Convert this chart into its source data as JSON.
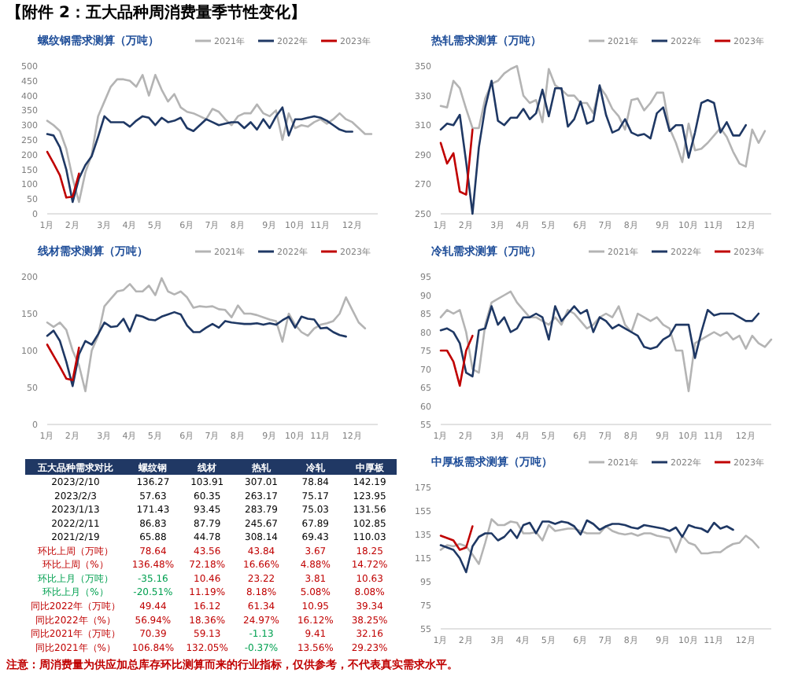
{
  "chart_data": [
    {
      "type": "line",
      "title": "【附件 2：五大品种周消费量季节性变化】",
      "subtitle": "螺纹钢需求测算（万吨）",
      "legend": "top right",
      "ylim": [
        0,
        500
      ],
      "yticks": [
        0,
        50,
        100,
        150,
        200,
        250,
        300,
        350,
        400,
        450,
        500
      ],
      "categories": [
        "1月",
        null,
        null,
        null,
        "2月",
        null,
        null,
        null,
        null,
        "3月",
        null,
        null,
        null,
        "4月",
        null,
        null,
        null,
        "5月",
        null,
        null,
        null,
        null,
        "6月",
        null,
        null,
        null,
        "7月",
        null,
        null,
        null,
        "8月",
        null,
        null,
        null,
        null,
        "9月",
        null,
        null,
        null,
        "10月",
        null,
        null,
        null,
        "11月",
        null,
        null,
        null,
        null,
        "12月",
        null,
        null,
        null,
        null
      ],
      "series": [
        {
          "name": "2021年",
          "color": "#b4b4b4",
          "values": [
            315,
            300,
            280,
            220,
            120,
            40,
            140,
            200,
            330,
            380,
            430,
            455,
            455,
            450,
            430,
            470,
            400,
            470,
            420,
            380,
            405,
            360,
            345,
            340,
            330,
            320,
            355,
            345,
            320,
            300,
            330,
            340,
            340,
            370,
            340,
            330,
            350,
            250,
            340,
            290,
            300,
            295,
            310,
            320,
            305,
            320,
            340,
            320,
            310,
            290,
            270,
            270,
            null
          ]
        },
        {
          "name": "2022年",
          "color": "#1f3864",
          "values": [
            270,
            265,
            225,
            150,
            40,
            120,
            165,
            195,
            260,
            330,
            310,
            310,
            310,
            295,
            315,
            330,
            325,
            300,
            325,
            310,
            315,
            325,
            290,
            280,
            300,
            320,
            310,
            300,
            305,
            310,
            310,
            290,
            310,
            285,
            320,
            290,
            330,
            360,
            265,
            320,
            320,
            325,
            330,
            325,
            315,
            300,
            285,
            278,
            278,
            null,
            null,
            null,
            null
          ]
        },
        {
          "name": "2023年",
          "color": "#c00000",
          "values": [
            210,
            171,
            130,
            55,
            58,
            136,
            null,
            null,
            null,
            null,
            null,
            null,
            null,
            null,
            null,
            null,
            null,
            null,
            null,
            null,
            null,
            null,
            null,
            null,
            null,
            null,
            null,
            null,
            null,
            null,
            null,
            null,
            null,
            null,
            null,
            null,
            null,
            null,
            null,
            null,
            null,
            null,
            null,
            null,
            null,
            null,
            null,
            null,
            null,
            null,
            null,
            null,
            null
          ]
        }
      ]
    },
    {
      "type": "line",
      "title": "热轧需求测算（万吨）",
      "legend": "top right",
      "ylim": [
        250,
        350
      ],
      "yticks": [
        250,
        270,
        290,
        310,
        330,
        350
      ],
      "categories": [
        "1月",
        null,
        null,
        null,
        "2月",
        null,
        null,
        null,
        null,
        "3月",
        null,
        null,
        null,
        "4月",
        null,
        null,
        null,
        "5月",
        null,
        null,
        null,
        null,
        "6月",
        null,
        null,
        null,
        "7月",
        null,
        null,
        null,
        "8月",
        null,
        null,
        null,
        null,
        "9月",
        null,
        null,
        null,
        "10月",
        null,
        null,
        null,
        "11月",
        null,
        null,
        null,
        null,
        "12月",
        null,
        null,
        null,
        null
      ],
      "series": [
        {
          "name": "2021年",
          "color": "#b4b4b4",
          "values": [
            323,
            322,
            340,
            335,
            321,
            308,
            308,
            328,
            338,
            340,
            345,
            348,
            350,
            330,
            325,
            327,
            312,
            348,
            337,
            334,
            330,
            330,
            325,
            325,
            318,
            336,
            330,
            321,
            316,
            307,
            327,
            328,
            320,
            325,
            332,
            332,
            308,
            298,
            285,
            311,
            293,
            294,
            298,
            303,
            308,
            302,
            292,
            284,
            282,
            307,
            298,
            306,
            null
          ]
        },
        {
          "name": "2022年",
          "color": "#1f3864",
          "values": [
            307,
            311,
            310,
            317,
            285,
            250,
            295,
            322,
            340,
            313,
            310,
            315,
            315,
            321,
            314,
            318,
            334,
            316,
            335,
            335,
            309,
            314,
            326,
            311,
            313,
            337,
            317,
            305,
            307,
            314,
            305,
            303,
            304,
            301,
            318,
            322,
            306,
            310,
            310,
            288,
            305,
            325,
            327,
            325,
            305,
            312,
            303,
            303,
            310,
            null,
            null,
            null,
            null
          ]
        },
        {
          "name": "2023年",
          "color": "#c00000",
          "values": [
            298,
            284,
            291,
            265,
            263,
            307,
            null,
            null,
            null,
            null,
            null,
            null,
            null,
            null,
            null,
            null,
            null,
            null,
            null,
            null,
            null,
            null,
            null,
            null,
            null,
            null,
            null,
            null,
            null,
            null,
            null,
            null,
            null,
            null,
            null,
            null,
            null,
            null,
            null,
            null,
            null,
            null,
            null,
            null,
            null,
            null,
            null,
            null,
            null,
            null,
            null,
            null,
            null
          ]
        }
      ]
    },
    {
      "type": "line",
      "title": "线材需求测算（万吨）",
      "legend": "top right",
      "ylim": [
        0,
        200
      ],
      "yticks": [
        0,
        50,
        100,
        150,
        200
      ],
      "categories": [
        "1月",
        null,
        null,
        null,
        "2月",
        null,
        null,
        null,
        null,
        "3月",
        null,
        null,
        null,
        "4月",
        null,
        null,
        null,
        "5月",
        null,
        null,
        null,
        null,
        "6月",
        null,
        null,
        null,
        "7月",
        null,
        null,
        null,
        "8月",
        null,
        null,
        null,
        null,
        "9月",
        null,
        null,
        null,
        "10月",
        null,
        null,
        null,
        "11月",
        null,
        null,
        null,
        null,
        "12月",
        null,
        null,
        null,
        null
      ],
      "series": [
        {
          "name": "2021年",
          "color": "#b4b4b4",
          "values": [
            138,
            132,
            138,
            128,
            100,
            80,
            45,
            100,
            120,
            160,
            170,
            180,
            182,
            190,
            180,
            180,
            188,
            175,
            198,
            180,
            176,
            180,
            172,
            158,
            160,
            159,
            160,
            156,
            155,
            145,
            161,
            150,
            150,
            148,
            145,
            142,
            140,
            112,
            150,
            135,
            125,
            120,
            130,
            135,
            137,
            140,
            150,
            172,
            155,
            138,
            130,
            null,
            null
          ]
        },
        {
          "name": "2022年",
          "color": "#1f3864",
          "values": [
            120,
            127,
            113,
            85,
            52,
            95,
            113,
            108,
            122,
            138,
            132,
            133,
            143,
            126,
            148,
            146,
            142,
            141,
            146,
            149,
            152,
            149,
            134,
            125,
            125,
            131,
            136,
            131,
            140,
            138,
            137,
            136,
            136,
            137,
            135,
            137,
            135,
            141,
            146,
            131,
            146,
            143,
            142,
            130,
            131,
            125,
            121,
            119,
            null,
            null,
            null,
            null,
            null
          ]
        },
        {
          "name": "2023年",
          "color": "#c00000",
          "values": [
            108,
            93,
            78,
            62,
            60,
            104,
            null,
            null,
            null,
            null,
            null,
            null,
            null,
            null,
            null,
            null,
            null,
            null,
            null,
            null,
            null,
            null,
            null,
            null,
            null,
            null,
            null,
            null,
            null,
            null,
            null,
            null,
            null,
            null,
            null,
            null,
            null,
            null,
            null,
            null,
            null,
            null,
            null,
            null,
            null,
            null,
            null,
            null,
            null,
            null,
            null,
            null,
            null
          ]
        }
      ]
    },
    {
      "type": "line",
      "title": "冷轧需求测算（万吨）",
      "legend": "top right",
      "ylim": [
        55,
        95
      ],
      "yticks": [
        55,
        60,
        65,
        70,
        75,
        80,
        85,
        90,
        95
      ],
      "categories": [
        "1月",
        null,
        null,
        null,
        "2月",
        null,
        null,
        null,
        null,
        "3月",
        null,
        null,
        null,
        "4月",
        null,
        null,
        null,
        "5月",
        null,
        null,
        null,
        null,
        "6月",
        null,
        null,
        null,
        "7月",
        null,
        null,
        null,
        "8月",
        null,
        null,
        null,
        null,
        "9月",
        null,
        null,
        null,
        "10月",
        null,
        null,
        null,
        "11月",
        null,
        null,
        null,
        null,
        "12月",
        null,
        null,
        null,
        null
      ],
      "series": [
        {
          "name": "2021年",
          "color": "#b4b4b4",
          "values": [
            84,
            86,
            85,
            86,
            80,
            70,
            69,
            82,
            88,
            89,
            90,
            91,
            88,
            86,
            84,
            84,
            83,
            82,
            84,
            82,
            86,
            85,
            83,
            81,
            82,
            84,
            85,
            84,
            87,
            82,
            80,
            85,
            84,
            83,
            84,
            82,
            81,
            75,
            75,
            64,
            77,
            78,
            79,
            80,
            79,
            80,
            78,
            79,
            75.5,
            79,
            77,
            76,
            78
          ]
        },
        {
          "name": "2022年",
          "color": "#1f3864",
          "values": [
            80.5,
            81,
            80,
            77,
            69,
            68,
            80.5,
            81,
            87,
            82,
            84,
            80,
            81,
            84,
            84,
            85,
            84,
            78,
            87,
            83,
            85,
            87,
            85,
            86,
            80,
            84,
            83,
            81,
            82,
            81,
            80,
            79,
            76,
            75.5,
            76,
            78,
            79,
            82,
            82,
            82,
            73,
            80,
            86,
            84.5,
            85,
            85,
            85,
            84,
            83,
            83,
            85,
            null,
            null
          ]
        },
        {
          "name": "2023年",
          "color": "#c00000",
          "values": [
            75,
            75,
            72,
            65.5,
            75,
            79,
            null,
            null,
            null,
            null,
            null,
            null,
            null,
            null,
            null,
            null,
            null,
            null,
            null,
            null,
            null,
            null,
            null,
            null,
            null,
            null,
            null,
            null,
            null,
            null,
            null,
            null,
            null,
            null,
            null,
            null,
            null,
            null,
            null,
            null,
            null,
            null,
            null,
            null,
            null,
            null,
            null,
            null,
            null,
            null,
            null,
            null,
            null
          ]
        }
      ]
    },
    {
      "type": "other",
      "title": "五大品种需求对比",
      "categories": [
        "螺纹钢",
        "线材",
        "热轧",
        "冷轧",
        "中厚板"
      ],
      "y_categories": [
        "2023/2/10",
        "2023/2/3",
        "2023/1/13",
        "2022/2/11",
        "2021/2/19",
        "环比上周（万吨）",
        "环比上周（%）",
        "环比上月（万吨）",
        "环比上月（%）",
        "同比2022年（万吨）",
        "同比2022年（%）",
        "同比2021年（万吨）",
        "同比2021年（%）"
      ],
      "cell_labels": [
        [
          "136.27",
          "103.91",
          "307.01",
          "78.84",
          "142.19"
        ],
        [
          "57.63",
          "60.35",
          "263.17",
          "75.17",
          "123.95"
        ],
        [
          "171.43",
          "93.45",
          "283.79",
          "75.03",
          "131.56"
        ],
        [
          "86.83",
          "87.79",
          "245.67",
          "67.89",
          "102.85"
        ],
        [
          "65.88",
          "44.78",
          "308.14",
          "69.43",
          "110.03"
        ],
        [
          "78.64",
          "43.56",
          "43.84",
          "3.67",
          "18.25"
        ],
        [
          "136.48%",
          "72.18%",
          "16.66%",
          "4.88%",
          "14.72%"
        ],
        [
          "-35.16",
          "10.46",
          "23.22",
          "3.81",
          "10.63"
        ],
        [
          "-20.51%",
          "11.19%",
          "8.18%",
          "5.08%",
          "8.08%"
        ],
        [
          "49.44",
          "16.12",
          "61.34",
          "10.95",
          "39.34"
        ],
        [
          "56.94%",
          "18.36%",
          "24.97%",
          "16.12%",
          "38.25%"
        ],
        [
          "70.39",
          "59.13",
          "-1.13",
          "9.41",
          "32.16"
        ],
        [
          "106.84%",
          "132.05%",
          "-0.37%",
          "13.56%",
          "29.23%"
        ]
      ],
      "colors": [
        [
          "#000000",
          "#000000",
          "#000000",
          "#000000",
          "#000000"
        ],
        [
          "#000000",
          "#000000",
          "#000000",
          "#000000",
          "#000000"
        ],
        [
          "#000000",
          "#000000",
          "#000000",
          "#000000",
          "#000000"
        ],
        [
          "#000000",
          "#000000",
          "#000000",
          "#000000",
          "#000000"
        ],
        [
          "#000000",
          "#000000",
          "#000000",
          "#000000",
          "#000000"
        ],
        [
          "#c00000",
          "#c00000",
          "#c00000",
          "#c00000",
          "#c00000"
        ],
        [
          "#c00000",
          "#c00000",
          "#c00000",
          "#c00000",
          "#c00000"
        ],
        [
          "#00a050",
          "#c00000",
          "#c00000",
          "#c00000",
          "#c00000"
        ],
        [
          "#00a050",
          "#c00000",
          "#c00000",
          "#c00000",
          "#c00000"
        ],
        [
          "#c00000",
          "#c00000",
          "#c00000",
          "#c00000",
          "#c00000"
        ],
        [
          "#c00000",
          "#c00000",
          "#c00000",
          "#c00000",
          "#c00000"
        ],
        [
          "#c00000",
          "#c00000",
          "#00a050",
          "#c00000",
          "#c00000"
        ],
        [
          "#c00000",
          "#c00000",
          "#00a050",
          "#c00000",
          "#c00000"
        ]
      ],
      "annotations": [
        "注意：周消费量为供应加总库存环比测算而来的行业指标，仅供参考，不代表真实需求水平。"
      ]
    },
    {
      "type": "line",
      "title": "中厚板需求测算（万吨）",
      "legend": "top right",
      "ylim": [
        55,
        175
      ],
      "yticks": [
        55,
        75,
        95,
        115,
        135,
        155,
        175
      ],
      "categories": [
        "1月",
        null,
        null,
        null,
        "2月",
        null,
        null,
        null,
        null,
        "3月",
        null,
        null,
        null,
        "4月",
        null,
        null,
        null,
        "5月",
        null,
        null,
        null,
        null,
        "6月",
        null,
        null,
        null,
        "7月",
        null,
        null,
        null,
        "8月",
        null,
        null,
        null,
        null,
        "9月",
        null,
        null,
        null,
        "10月",
        null,
        null,
        null,
        "11月",
        null,
        null,
        null,
        null,
        "12月",
        null,
        null,
        null,
        null
      ],
      "series": [
        {
          "name": "2021年",
          "color": "#b4b4b4",
          "values": [
            122,
            126,
            125,
            127,
            125,
            118,
            110,
            128,
            148,
            143,
            143,
            146,
            145,
            136,
            136,
            137,
            130,
            143,
            138,
            139,
            140,
            140,
            138,
            136,
            136,
            136,
            142,
            138,
            136,
            135,
            136,
            134,
            136,
            136,
            134,
            133,
            132,
            120,
            134,
            128,
            126,
            119,
            119,
            120,
            120,
            124,
            127,
            128,
            134,
            130,
            124,
            null,
            null
          ]
        },
        {
          "name": "2022年",
          "color": "#1f3864",
          "values": [
            126,
            124,
            122,
            115,
            103,
            125,
            133,
            136,
            136,
            130,
            133,
            139,
            132,
            143,
            145,
            136,
            146,
            146,
            144,
            146,
            145,
            142,
            135,
            147,
            144,
            139,
            142,
            144,
            144,
            143,
            141,
            140,
            143,
            142,
            141,
            140,
            138,
            141,
            133,
            143,
            141,
            140,
            137,
            145,
            140,
            142,
            139,
            null,
            null,
            null,
            null,
            null,
            null
          ]
        },
        {
          "name": "2023年",
          "color": "#c00000",
          "values": [
            134,
            132,
            130,
            122,
            124,
            142,
            null,
            null,
            null,
            null,
            null,
            null,
            null,
            null,
            null,
            null,
            null,
            null,
            null,
            null,
            null,
            null,
            null,
            null,
            null,
            null,
            null,
            null,
            null,
            null,
            null,
            null,
            null,
            null,
            null,
            null,
            null,
            null,
            null,
            null,
            null,
            null,
            null,
            null,
            null,
            null,
            null,
            null,
            null,
            null,
            null,
            null,
            null
          ]
        }
      ]
    }
  ]
}
